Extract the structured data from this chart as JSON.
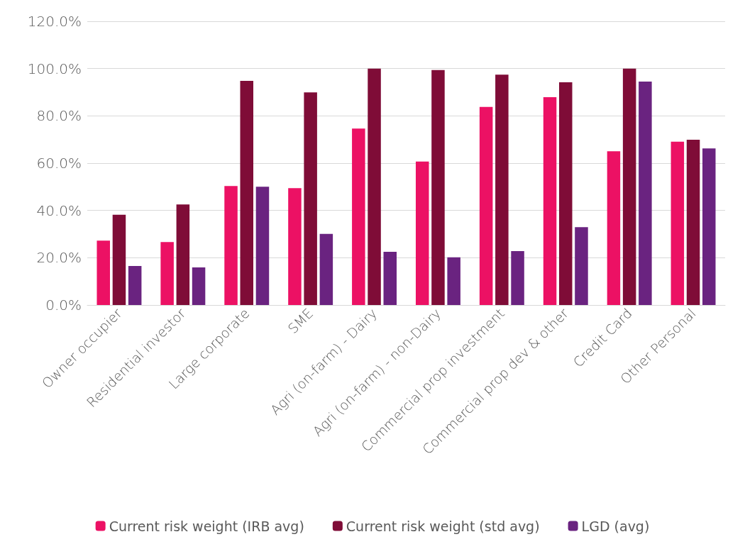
{
  "chart_data": {
    "type": "bar",
    "categories": [
      "Owner occupier",
      "Residential investor",
      "Large corporate",
      "SME",
      "Agri (on-farm) - Dairy",
      "Agri (on-farm) - non-Dairy",
      "Commercial prop investment",
      "Commercial prop dev & other",
      "Credit Card",
      "Other Personal"
    ],
    "series": [
      {
        "name": "Current risk weight (IRB avg)",
        "color": "#ec1164",
        "values": [
          27.2,
          26.6,
          50.3,
          49.4,
          74.6,
          60.7,
          83.8,
          87.9,
          65.0,
          69.1
        ]
      },
      {
        "name": "Current risk weight (std avg)",
        "color": "#7f0c37",
        "values": [
          38.2,
          42.5,
          94.8,
          89.9,
          100,
          99.4,
          97.4,
          94.2,
          100,
          69.9
        ]
      },
      {
        "name": "LGD (avg)",
        "color": "#6a2380",
        "values": [
          16.5,
          15.9,
          50.0,
          30.1,
          22.5,
          20.2,
          22.8,
          32.9,
          94.5,
          66.2
        ]
      }
    ],
    "ylim": [
      0,
      120
    ],
    "yticks": [
      {
        "value": 0,
        "label": "0.0%"
      },
      {
        "value": 20,
        "label": "20.0%"
      },
      {
        "value": 40,
        "label": "40.0%"
      },
      {
        "value": 60,
        "label": "60.0%"
      },
      {
        "value": 80,
        "label": "80.0%"
      },
      {
        "value": 100,
        "label": "100.0%"
      },
      {
        "value": 120,
        "label": "120.0%"
      }
    ],
    "grid": "y",
    "legend": "bottom"
  }
}
